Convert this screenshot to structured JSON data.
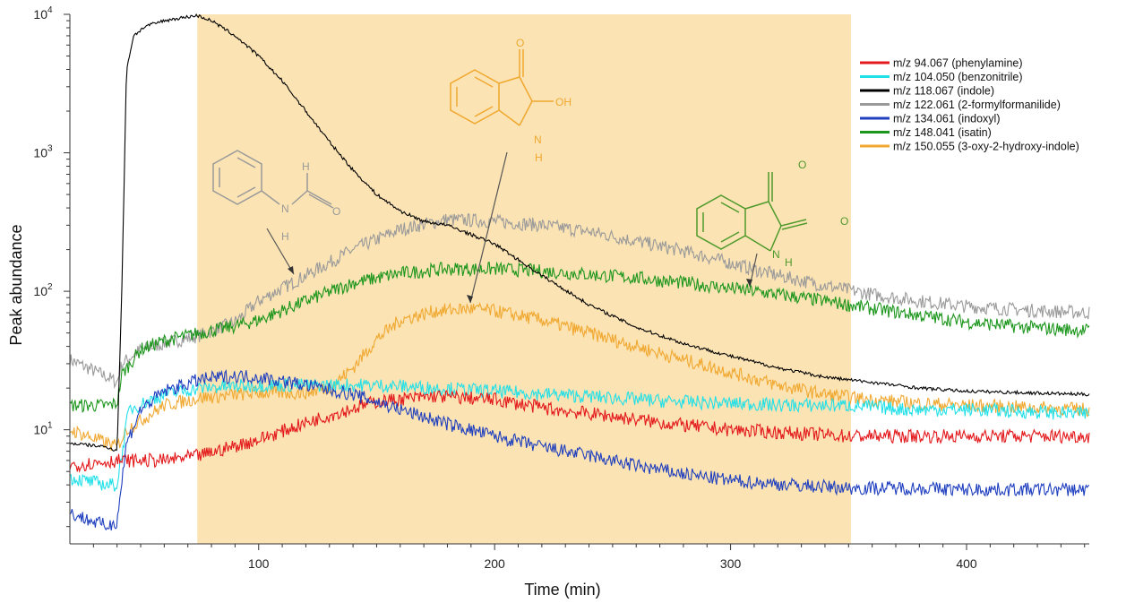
{
  "chart_data": {
    "type": "line",
    "title": "",
    "xlabel": "Time (min)",
    "ylabel": "Peak abundance",
    "xlim": [
      20,
      452
    ],
    "ylim": [
      1.5,
      10000
    ],
    "y_scale": "log",
    "x_ticks": [
      100,
      200,
      300,
      400
    ],
    "x_tick_labels": [
      "100",
      "200",
      "300",
      "400"
    ],
    "y_ticks": [
      10,
      100,
      1000,
      10000
    ],
    "y_tick_labels": [
      {
        "base": "10",
        "exp": "1"
      },
      {
        "base": "10",
        "exp": "2"
      },
      {
        "base": "10",
        "exp": "3"
      },
      {
        "base": "10",
        "exp": "4"
      }
    ],
    "shaded_region": {
      "x_start": 74,
      "x_end": 351,
      "color": "#fbe3b3"
    },
    "legend_position": "top-right",
    "series": [
      {
        "name": "m/z 94.067 (phenylamine)",
        "color": "#e3191c",
        "points": [
          [
            20,
            5.5
          ],
          [
            40,
            6
          ],
          [
            60,
            6
          ],
          [
            75,
            6.5
          ],
          [
            100,
            8.5
          ],
          [
            125,
            12
          ],
          [
            150,
            16
          ],
          [
            175,
            17.5
          ],
          [
            200,
            16.5
          ],
          [
            225,
            14
          ],
          [
            250,
            12.5
          ],
          [
            275,
            11
          ],
          [
            300,
            10
          ],
          [
            325,
            9.5
          ],
          [
            350,
            9
          ],
          [
            375,
            9
          ],
          [
            400,
            9
          ],
          [
            425,
            9
          ],
          [
            452,
            9
          ]
        ]
      },
      {
        "name": "m/z 104.050 (benzonitrile)",
        "color": "#21e0e8",
        "points": [
          [
            20,
            4.5
          ],
          [
            36,
            4
          ],
          [
            40,
            4
          ],
          [
            45,
            14
          ],
          [
            60,
            18
          ],
          [
            75,
            20
          ],
          [
            100,
            21
          ],
          [
            125,
            21
          ],
          [
            150,
            21
          ],
          [
            175,
            20
          ],
          [
            200,
            19
          ],
          [
            225,
            18
          ],
          [
            250,
            17
          ],
          [
            275,
            16
          ],
          [
            300,
            15.5
          ],
          [
            325,
            15
          ],
          [
            350,
            15
          ],
          [
            375,
            14
          ],
          [
            400,
            14
          ],
          [
            425,
            13.5
          ],
          [
            452,
            13
          ]
        ]
      },
      {
        "name": "m/z 118.067 (indole)",
        "color": "#000000",
        "points": [
          [
            20,
            8
          ],
          [
            36,
            7.5
          ],
          [
            40,
            7
          ],
          [
            42,
            100
          ],
          [
            44,
            4000
          ],
          [
            47,
            7000
          ],
          [
            52,
            8200
          ],
          [
            60,
            9000
          ],
          [
            70,
            9600
          ],
          [
            74,
            9800
          ],
          [
            80,
            9000
          ],
          [
            90,
            7000
          ],
          [
            100,
            5000
          ],
          [
            110,
            3300
          ],
          [
            120,
            2000
          ],
          [
            130,
            1200
          ],
          [
            140,
            750
          ],
          [
            150,
            500
          ],
          [
            160,
            380
          ],
          [
            170,
            320
          ],
          [
            180,
            300
          ],
          [
            200,
            220
          ],
          [
            220,
            130
          ],
          [
            240,
            80
          ],
          [
            260,
            55
          ],
          [
            280,
            42
          ],
          [
            300,
            34
          ],
          [
            320,
            28
          ],
          [
            340,
            24
          ],
          [
            360,
            22
          ],
          [
            380,
            20
          ],
          [
            400,
            19
          ],
          [
            425,
            18.5
          ],
          [
            452,
            18
          ]
        ]
      },
      {
        "name": "m/z 122.061 (2-formylformanilide)",
        "color": "#9a9a9a",
        "points": [
          [
            20,
            32
          ],
          [
            36,
            24
          ],
          [
            40,
            22
          ],
          [
            42,
            30
          ],
          [
            50,
            38
          ],
          [
            60,
            42
          ],
          [
            75,
            48
          ],
          [
            90,
            60
          ],
          [
            100,
            85
          ],
          [
            120,
            130
          ],
          [
            140,
            200
          ],
          [
            160,
            280
          ],
          [
            180,
            330
          ],
          [
            200,
            320
          ],
          [
            220,
            300
          ],
          [
            240,
            270
          ],
          [
            260,
            230
          ],
          [
            280,
            195
          ],
          [
            300,
            160
          ],
          [
            320,
            130
          ],
          [
            340,
            110
          ],
          [
            360,
            95
          ],
          [
            380,
            85
          ],
          [
            400,
            78
          ],
          [
            425,
            73
          ],
          [
            452,
            70
          ]
        ]
      },
      {
        "name": "m/z 134.061 (indoxyl)",
        "color": "#1f3fbf",
        "points": [
          [
            20,
            2.5
          ],
          [
            36,
            2
          ],
          [
            40,
            2.2
          ],
          [
            44,
            8
          ],
          [
            50,
            14
          ],
          [
            60,
            19
          ],
          [
            75,
            23
          ],
          [
            90,
            24.5
          ],
          [
            100,
            24
          ],
          [
            120,
            21
          ],
          [
            140,
            18
          ],
          [
            160,
            14
          ],
          [
            180,
            11
          ],
          [
            200,
            9
          ],
          [
            220,
            7.5
          ],
          [
            240,
            6.5
          ],
          [
            260,
            5.5
          ],
          [
            280,
            4.8
          ],
          [
            300,
            4.3
          ],
          [
            325,
            4
          ],
          [
            350,
            3.8
          ],
          [
            375,
            3.8
          ],
          [
            400,
            3.7
          ],
          [
            425,
            3.7
          ],
          [
            452,
            3.7
          ]
        ]
      },
      {
        "name": "m/z 148.041 (isatin)",
        "color": "#1c961c",
        "points": [
          [
            20,
            15
          ],
          [
            36,
            15
          ],
          [
            40,
            15.5
          ],
          [
            42,
            25
          ],
          [
            50,
            38
          ],
          [
            60,
            44
          ],
          [
            75,
            50
          ],
          [
            90,
            56
          ],
          [
            100,
            62
          ],
          [
            120,
            85
          ],
          [
            140,
            115
          ],
          [
            160,
            135
          ],
          [
            180,
            145
          ],
          [
            200,
            145
          ],
          [
            220,
            140
          ],
          [
            240,
            132
          ],
          [
            260,
            125
          ],
          [
            280,
            115
          ],
          [
            300,
            105
          ],
          [
            320,
            95
          ],
          [
            340,
            85
          ],
          [
            360,
            75
          ],
          [
            380,
            67
          ],
          [
            400,
            60
          ],
          [
            425,
            55
          ],
          [
            452,
            52
          ]
        ]
      },
      {
        "name": "m/z 150.055 (3-oxy-2-hydroxy-indole)",
        "color": "#f0a830",
        "points": [
          [
            20,
            10
          ],
          [
            36,
            8
          ],
          [
            40,
            7.5
          ],
          [
            44,
            10
          ],
          [
            60,
            15
          ],
          [
            75,
            17
          ],
          [
            100,
            18.5
          ],
          [
            120,
            18.5
          ],
          [
            130,
            20
          ],
          [
            140,
            28
          ],
          [
            150,
            45
          ],
          [
            160,
            62
          ],
          [
            175,
            72
          ],
          [
            190,
            75
          ],
          [
            200,
            72
          ],
          [
            220,
            62
          ],
          [
            240,
            50
          ],
          [
            260,
            40
          ],
          [
            280,
            32
          ],
          [
            300,
            26
          ],
          [
            320,
            21
          ],
          [
            340,
            18
          ],
          [
            360,
            16.5
          ],
          [
            380,
            15.5
          ],
          [
            400,
            15
          ],
          [
            425,
            14.5
          ],
          [
            452,
            14
          ]
        ]
      }
    ],
    "annotations": [
      {
        "type": "structure",
        "name": "2-formylformanilide",
        "color": "#9a9a9a",
        "labels": [
          "H",
          "H",
          "O"
        ],
        "arrow_to": [
          115,
          140
        ]
      },
      {
        "type": "structure",
        "name": "3-oxy-2-hydroxy-indole",
        "color": "#f0a830",
        "labels": [
          "O",
          "OH",
          "N",
          "H"
        ],
        "arrow_to": [
          183,
          60
        ]
      },
      {
        "type": "structure",
        "name": "isatin",
        "color": "#4f9a2c",
        "labels": [
          "O",
          "O",
          "N",
          "H"
        ],
        "arrow_to": [
          312,
          93
        ]
      }
    ]
  }
}
